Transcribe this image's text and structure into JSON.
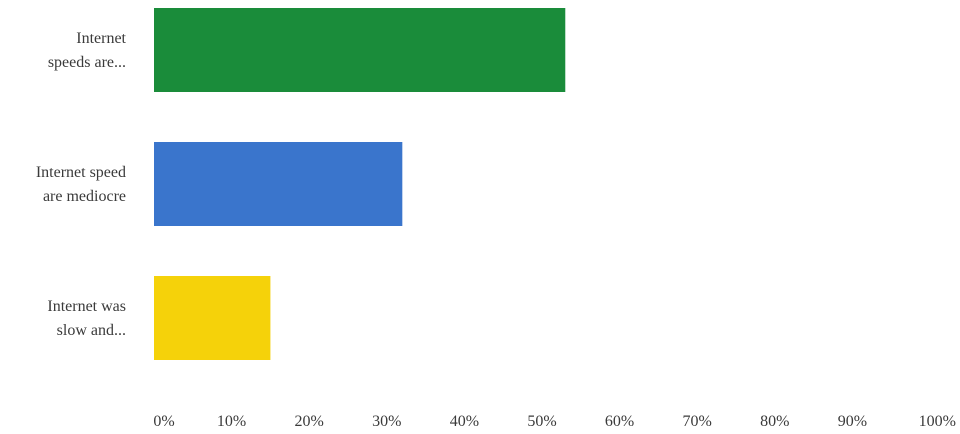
{
  "chart_data": {
    "type": "bar",
    "orientation": "horizontal",
    "categories": [
      [
        "Internet",
        "speeds are..."
      ],
      [
        "Internet speed",
        "are mediocre"
      ],
      [
        "Internet was",
        "slow and..."
      ]
    ],
    "values": [
      53,
      32,
      15
    ],
    "colors": [
      "#1a8c3a",
      "#3a75cc",
      "#f5d20a"
    ],
    "xlim": [
      0,
      100
    ],
    "xticks": [
      0,
      10,
      20,
      30,
      40,
      50,
      60,
      70,
      80,
      90,
      100
    ],
    "tick_suffix": "%",
    "grid": false,
    "legend": "none"
  }
}
